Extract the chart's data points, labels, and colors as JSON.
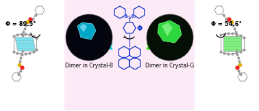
{
  "fig_width": 3.78,
  "fig_height": 1.63,
  "bg_color": "#fce8f5",
  "left_angle": "Φ = 89.5°",
  "right_angle": "Φ = 54.6°",
  "left_label": "Dimer in Crystal-B",
  "right_label": "Dimer in Crystal-G",
  "center_phi": "Φ",
  "arrow_left_color": "#00d0d0",
  "arrow_right_color": "#22dd00",
  "left_crystal_color": "#00ccee",
  "right_crystal_color": "#44ee44",
  "molecule_color": "#1133cc",
  "atom_color": "#999999",
  "atom_dark": "#777777",
  "red_atom_color": "#ee2222",
  "yellow_atom_color": "#ddaa00",
  "left_highlight": "#66ddee",
  "right_highlight": "#66ee66",
  "circle_left_bg": "#05050f",
  "circle_right_bg": "#050f05"
}
